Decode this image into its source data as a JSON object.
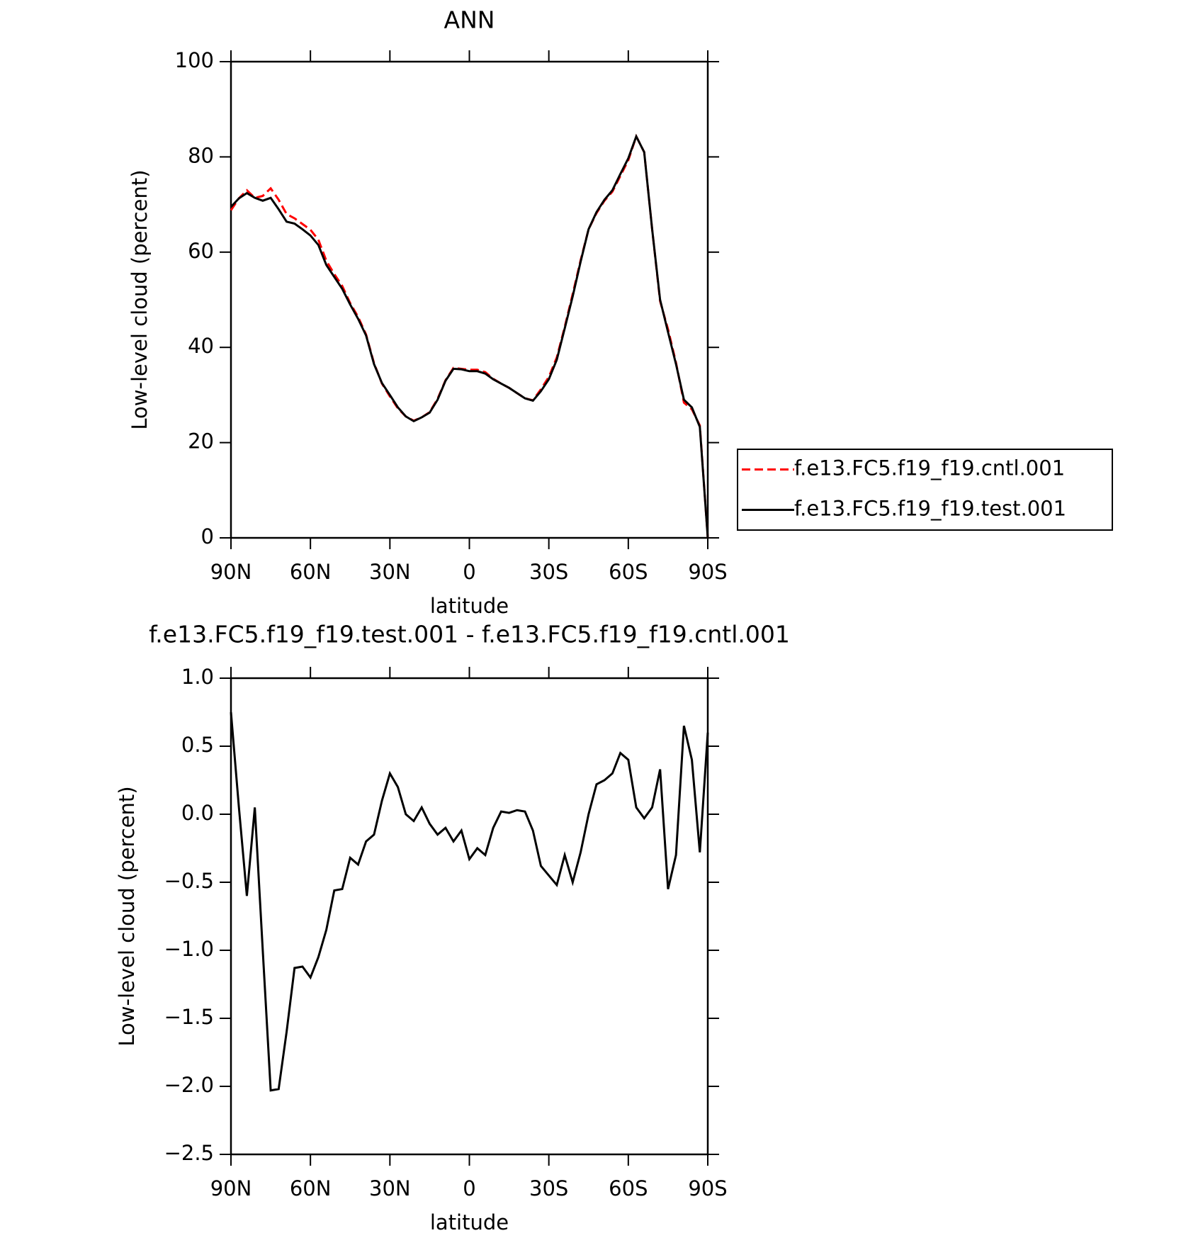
{
  "chart_data": [
    {
      "type": "line",
      "title": "ANN",
      "xlabel": "latitude",
      "ylabel": "Low-level cloud (percent)",
      "x": [
        90,
        87,
        84,
        81,
        78,
        75,
        72,
        69,
        66,
        63,
        60,
        57,
        54,
        51,
        48,
        45,
        42,
        39,
        36,
        33,
        30,
        27,
        24,
        21,
        18,
        15,
        12,
        9,
        6,
        3,
        0,
        -3,
        -6,
        -9,
        -12,
        -15,
        -18,
        -21,
        -24,
        -27,
        -30,
        -33,
        -36,
        -39,
        -42,
        -45,
        -48,
        -51,
        -54,
        -57,
        -60,
        -63,
        -66,
        -69,
        -72,
        -75,
        -78,
        -81,
        -84,
        -87,
        -90
      ],
      "xlim": [
        90,
        -90
      ],
      "xticks": [
        {
          "value": 90,
          "label": "90N"
        },
        {
          "value": 60,
          "label": "60N"
        },
        {
          "value": 30,
          "label": "30N"
        },
        0,
        {
          "value": -30,
          "label": "30S"
        },
        {
          "value": -60,
          "label": "60S"
        },
        {
          "value": -90,
          "label": "90S"
        }
      ],
      "ylim": [
        0,
        100
      ],
      "yticks": [
        0,
        20,
        40,
        60,
        80,
        100
      ],
      "legend": "outside-right",
      "series": [
        {
          "name": "f.e13.FC5.f19_f19.cntl.001",
          "color": "#ff0000",
          "dashed": true,
          "values": [
            68.8,
            71.3,
            73.0,
            71.4,
            71.8,
            73.4,
            71.0,
            68.0,
            67.1,
            65.9,
            64.7,
            62.6,
            58.2,
            55.4,
            52.9,
            49.3,
            46.4,
            42.7,
            36.7,
            32.4,
            29.7,
            27.2,
            25.5,
            24.6,
            25.3,
            26.4,
            29.2,
            33.1,
            35.7,
            35.5,
            35.3,
            35.3,
            34.8,
            33.4,
            32.4,
            31.5,
            30.4,
            29.3,
            28.9,
            31.2,
            33.8,
            37.9,
            44.3,
            51.2,
            58.3,
            64.8,
            68.2,
            70.8,
            72.7,
            76.0,
            79.3,
            84.3,
            81.0,
            64.8,
            49.7,
            43.8,
            36.8,
            28.4,
            27.0,
            23.6,
            0
          ]
        },
        {
          "name": "f.e13.FC5.f19_f19.test.001",
          "color": "#000000",
          "dashed": false,
          "values": [
            69.5,
            71.3,
            72.4,
            71.4,
            70.8,
            71.4,
            69,
            66.4,
            66,
            64.8,
            63.5,
            61.5,
            57.3,
            54.8,
            52.3,
            49,
            46,
            42.5,
            36.5,
            32.5,
            30,
            27.4,
            25.5,
            24.5,
            25.3,
            26.3,
            29,
            33,
            35.5,
            35.4,
            35,
            35,
            34.5,
            33.3,
            32.4,
            31.5,
            30.4,
            29.3,
            28.8,
            30.8,
            33.3,
            37.4,
            44,
            50.7,
            58,
            64.8,
            68.4,
            71,
            73,
            76.4,
            79.7,
            84.3,
            81,
            64.8,
            50,
            43.2,
            36.5,
            29,
            27.4,
            23.3,
            0
          ]
        }
      ]
    },
    {
      "type": "line",
      "title": "f.e13.FC5.f19_f19.test.001 - f.e13.FC5.f19_f19.cntl.001",
      "xlabel": "latitude",
      "ylabel": "Low-level cloud (percent)",
      "x": [
        90,
        87,
        84,
        81,
        78,
        75,
        72,
        69,
        66,
        63,
        60,
        57,
        54,
        51,
        48,
        45,
        42,
        39,
        36,
        33,
        30,
        27,
        24,
        21,
        18,
        15,
        12,
        9,
        6,
        3,
        0,
        -3,
        -6,
        -9,
        -12,
        -15,
        -18,
        -21,
        -24,
        -27,
        -30,
        -33,
        -36,
        -39,
        -42,
        -45,
        -48,
        -51,
        -54,
        -57,
        -60,
        -63,
        -66,
        -69,
        -72,
        -75,
        -78,
        -81,
        -84,
        -87,
        -90
      ],
      "xlim": [
        90,
        -90
      ],
      "xticks": [
        {
          "value": 90,
          "label": "90N"
        },
        {
          "value": 60,
          "label": "60N"
        },
        {
          "value": 30,
          "label": "30N"
        },
        0,
        {
          "value": -30,
          "label": "30S"
        },
        {
          "value": -60,
          "label": "60S"
        },
        {
          "value": -90,
          "label": "90S"
        }
      ],
      "ylim": [
        -2.5,
        1.0
      ],
      "yticks": [
        {
          "value": -2.5,
          "label": "−2.5"
        },
        {
          "value": -2.0,
          "label": "−2.0"
        },
        {
          "value": -1.5,
          "label": "−1.5"
        },
        {
          "value": -1.0,
          "label": "−1.0"
        },
        {
          "value": -0.5,
          "label": "−0.5"
        },
        {
          "value": 0,
          "label": "0.0"
        },
        0.5,
        {
          "value": 1,
          "label": "1.0"
        }
      ],
      "series": [
        {
          "color": "#000000",
          "dashed": false,
          "values": [
            0.75,
            0.05,
            -0.6,
            0.05,
            -1.0,
            -2.03,
            -2.02,
            -1.6,
            -1.13,
            -1.12,
            -1.2,
            -1.05,
            -0.85,
            -0.56,
            -0.55,
            -0.32,
            -0.37,
            -0.2,
            -0.15,
            0.1,
            0.3,
            0.2,
            0.0,
            -0.05,
            0.05,
            -0.07,
            -0.15,
            -0.1,
            -0.2,
            -0.12,
            -0.33,
            -0.25,
            -0.3,
            -0.1,
            0.02,
            0.01,
            0.03,
            0.02,
            -0.12,
            -0.38,
            -0.45,
            -0.52,
            -0.3,
            -0.5,
            -0.28,
            0.0,
            0.22,
            0.25,
            0.3,
            0.45,
            0.4,
            0.05,
            -0.03,
            0.05,
            0.33,
            -0.55,
            -0.3,
            0.65,
            0.4,
            -0.28,
            0.6
          ]
        }
      ]
    }
  ]
}
